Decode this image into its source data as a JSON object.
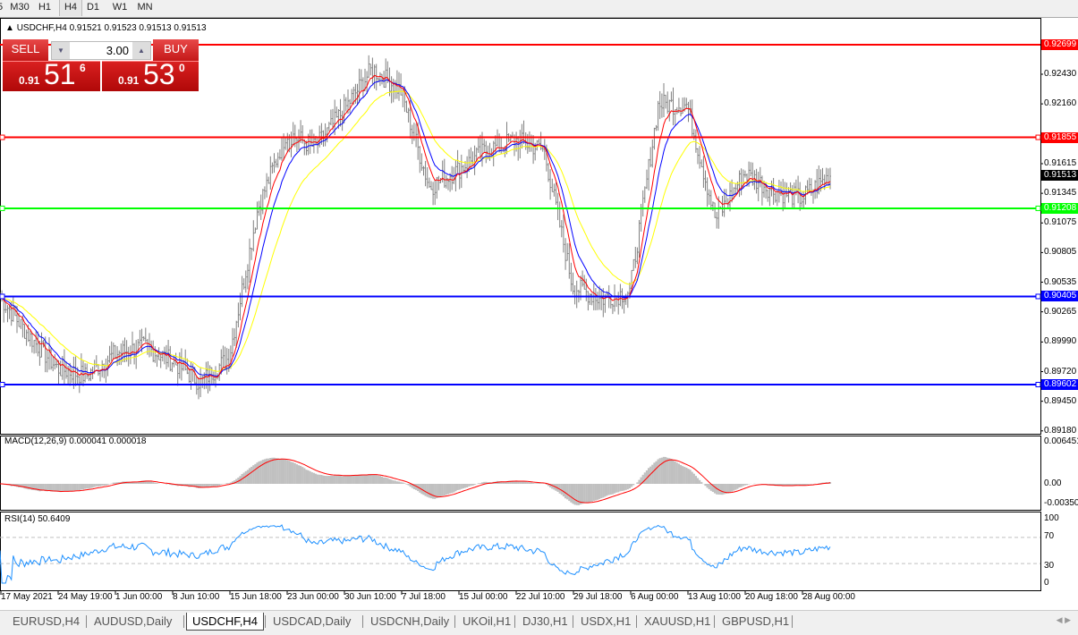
{
  "toolbar": {
    "timeframes": [
      "5",
      "M30",
      "H1",
      "H4",
      "D1",
      "W1",
      "MN"
    ],
    "active": "H4"
  },
  "chart_title": "USDCHF,H4  0.91521 0.91523 0.91513 0.91513",
  "trade_panel": {
    "sell_label": "SELL",
    "buy_label": "BUY",
    "lot": "3.00",
    "sell_prefix": "0.91",
    "sell_big": "51",
    "sell_sup": "6",
    "buy_prefix": "0.91",
    "buy_big": "53",
    "buy_sup": "0"
  },
  "tabs": [
    "EURUSD,H4",
    "AUDUSD,Daily",
    "USDCHF,H4",
    "USDCAD,Daily",
    "USDCNH,Daily",
    "UKOil,H1",
    "DJ30,H1",
    "USDX,H1",
    "XAUUSD,H1",
    "GBPUSD,H1"
  ],
  "active_tab": "USDCHF,H4",
  "colors": {
    "bars": "#808080",
    "ma_fast": "#ff0000",
    "ma_mid": "#0000ff",
    "ma_slow": "#ffff00",
    "resistance": "#ff0000",
    "support_green": "#00ff00",
    "support_blue": "#0000ff",
    "macd_hist": "#c0c0c0",
    "macd_signal": "#ff0000",
    "rsi": "#1e90ff"
  },
  "chart_data": {
    "type": "candlestick-ohlc",
    "symbol": "USDCHF",
    "timeframe": "H4",
    "ylim": [
      0.8918,
      0.9275
    ],
    "price_ticks": [
      "0.92430",
      "0.92160",
      "0.91615",
      "0.91345",
      "0.91075",
      "0.90805",
      "0.90535",
      "0.90265",
      "0.89990",
      "0.89720",
      "0.89450",
      "0.89180"
    ],
    "current_price": "0.91513",
    "levels": [
      {
        "value": "0.92699",
        "color": "#ff0000"
      },
      {
        "value": "0.91855",
        "color": "#ff0000"
      },
      {
        "value": "0.91208",
        "color": "#00ff00"
      },
      {
        "value": "0.90405",
        "color": "#0000ff"
      },
      {
        "value": "0.89602",
        "color": "#0000ff"
      }
    ],
    "time_ticks": [
      "17 May 2021",
      "24 May 19:00",
      "1 Jun 00:00",
      "8 Jun 10:00",
      "15 Jun 18:00",
      "23 Jun 00:00",
      "30 Jun 10:00",
      "7 Jul 18:00",
      "15 Jul 00:00",
      "22 Jul 10:00",
      "29 Jul 18:00",
      "6 Aug 00:00",
      "13 Aug 10:00",
      "20 Aug 18:00",
      "28 Aug 00:00"
    ],
    "approx_close": [
      0.904,
      0.9005,
      0.8975,
      0.8968,
      0.8988,
      0.8995,
      0.8982,
      0.8962,
      0.8985,
      0.912,
      0.919,
      0.9176,
      0.921,
      0.9248,
      0.9228,
      0.914,
      0.9156,
      0.9174,
      0.9183,
      0.9174,
      0.905,
      0.9038,
      0.9045,
      0.9216,
      0.9215,
      0.911,
      0.9153,
      0.9137,
      0.913,
      0.9151
    ],
    "macd": {
      "label": "MACD(12,26,9) 0.000041 0.000018",
      "ticks": [
        "0.006451",
        "0.00",
        "-0.003507"
      ]
    },
    "rsi": {
      "label": "RSI(14) 50.6409",
      "ticks": [
        "100",
        "70",
        "30",
        "0"
      ],
      "levels": [
        70,
        30
      ]
    }
  }
}
